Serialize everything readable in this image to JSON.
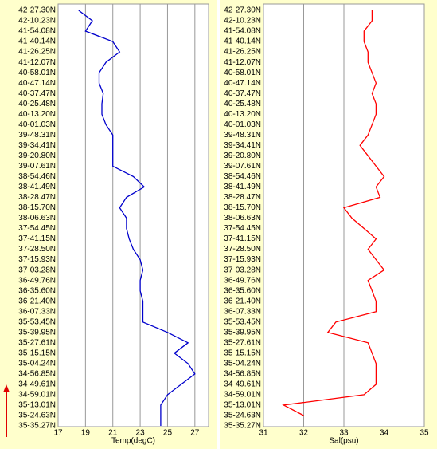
{
  "chart_data": [
    {
      "type": "line",
      "orientation": "vertical-track",
      "xlabel": "Temp(degC)",
      "xlim": [
        17,
        28
      ],
      "xticks": [
        17,
        19,
        21,
        23,
        25,
        27
      ],
      "grid": true,
      "color": "#0000cc",
      "categories": [
        "42-27.30N",
        "42-10.23N",
        "41-54.08N",
        "41-40.14N",
        "41-26.25N",
        "41-12.07N",
        "40-58.01N",
        "40-47.14N",
        "40-37.47N",
        "40-25.48N",
        "40-13.20N",
        "40-01.03N",
        "39-48.31N",
        "39-34.41N",
        "39-20.80N",
        "39-07.61N",
        "38-54.46N",
        "38-41.49N",
        "38-28.47N",
        "38-15.70N",
        "38-06.63N",
        "37-54.45N",
        "37-41.15N",
        "37-28.50N",
        "37-15.93N",
        "37-03.28N",
        "36-49.76N",
        "36-35.60N",
        "36-21.40N",
        "36-07.33N",
        "35-53.45N",
        "35-39.95N",
        "35-27.61N",
        "35-15.15N",
        "35-04.24N",
        "34-56.85N",
        "34-49.61N",
        "34-59.01N",
        "35-13.01N",
        "35-24.63N",
        "35-35.27N"
      ],
      "values": [
        18.5,
        19.5,
        19,
        21,
        21.5,
        20.5,
        20,
        20,
        20.3,
        20.2,
        20.2,
        20.5,
        21,
        21,
        21,
        21,
        22.5,
        23.3,
        22,
        21.5,
        22,
        22,
        22.2,
        22.5,
        23,
        23.2,
        23,
        23,
        23.2,
        23.2,
        23.2,
        25,
        26.5,
        25.5,
        26.5,
        27,
        26,
        25,
        24.5,
        24.5,
        24.5
      ]
    },
    {
      "type": "line",
      "orientation": "vertical-track",
      "xlabel": "Sal(psu)",
      "xlim": [
        31,
        35
      ],
      "xticks": [
        31,
        32,
        33,
        34,
        35
      ],
      "grid": true,
      "color": "#ff0000",
      "categories": [
        "42-27.30N",
        "42-10.23N",
        "41-54.08N",
        "41-40.14N",
        "41-26.25N",
        "41-12.07N",
        "40-58.01N",
        "40-47.14N",
        "40-37.47N",
        "40-25.48N",
        "40-13.20N",
        "40-01.03N",
        "39-48.31N",
        "39-34.41N",
        "39-20.80N",
        "39-07.61N",
        "38-54.46N",
        "38-41.49N",
        "38-28.47N",
        "38-15.70N",
        "38-06.63N",
        "37-54.45N",
        "37-41.15N",
        "37-28.50N",
        "37-15.93N",
        "37-03.28N",
        "36-49.76N",
        "36-35.60N",
        "36-21.40N",
        "36-07.33N",
        "35-53.45N",
        "35-39.95N",
        "35-27.61N",
        "35-15.15N",
        "35-04.24N",
        "34-56.85N",
        "34-49.61N",
        "34-59.01N",
        "35-13.01N",
        "35-24.63N",
        "35-35.27N"
      ],
      "values": [
        33.7,
        33.7,
        33.5,
        33.5,
        33.6,
        33.6,
        33.7,
        33.8,
        33.7,
        33.8,
        33.8,
        33.7,
        33.6,
        33.4,
        33.6,
        33.8,
        34,
        33.8,
        33.9,
        33,
        33.2,
        33.5,
        33.8,
        33.6,
        33.8,
        34,
        33.6,
        33.7,
        33.8,
        33.8,
        32.8,
        32.6,
        33.6,
        33.7,
        33.8,
        33.8,
        33.8,
        33.5,
        31.5,
        32,
        null
      ]
    }
  ]
}
